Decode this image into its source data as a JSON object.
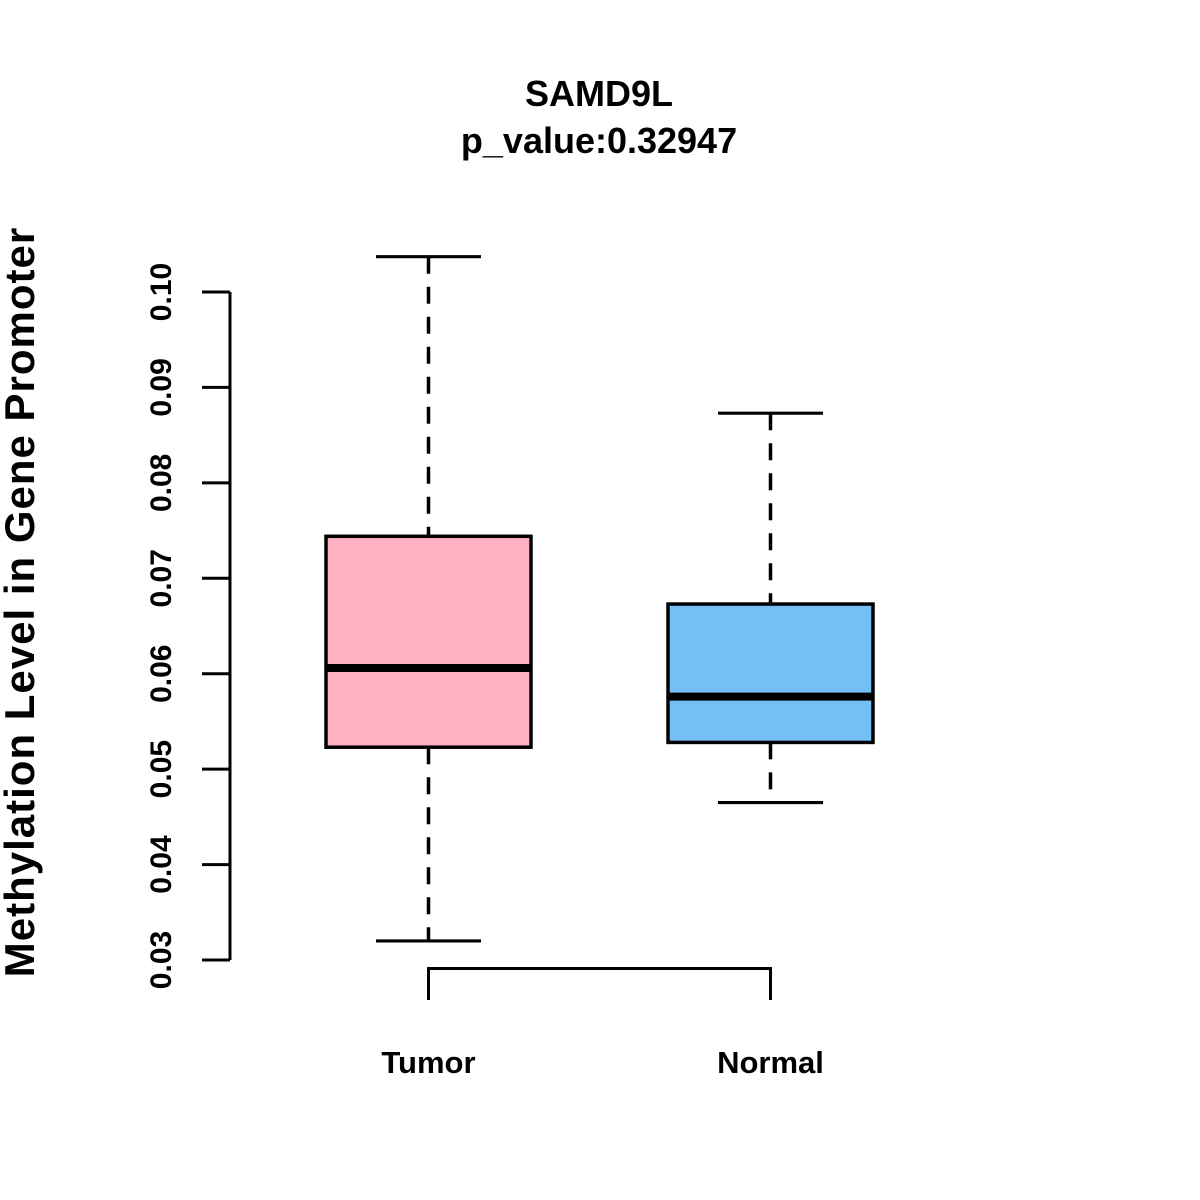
{
  "chart_data": {
    "type": "boxplot",
    "title": "SAMD9L",
    "subtitle": "p_value:0.32947",
    "ylabel": "Methylation Level in Gene Promoter",
    "xlabel": "",
    "ylim": [
      0.03,
      0.1
    ],
    "yticks": [
      "0.03",
      "0.04",
      "0.05",
      "0.06",
      "0.07",
      "0.08",
      "0.09",
      "0.10"
    ],
    "ytick_values": [
      0.03,
      0.04,
      0.05,
      0.06,
      0.07,
      0.08,
      0.09,
      0.1
    ],
    "grid": "off",
    "legend": "none",
    "whisker_style": "dashed",
    "groups": [
      {
        "label": "Tumor",
        "fill_color": "#FFB1C4",
        "whisker_low": 0.032,
        "q1": 0.0523,
        "median": 0.0606,
        "q3": 0.0744,
        "whisker_high": 0.1037
      },
      {
        "label": "Normal",
        "fill_color": "#73BFF6",
        "whisker_low": 0.0465,
        "q1": 0.0528,
        "median": 0.0576,
        "q3": 0.0673,
        "whisker_high": 0.0873
      }
    ],
    "colors": {
      "box_border": "#000000",
      "median_line": "#000000",
      "axis": "#000000",
      "background": "#ffffff"
    }
  }
}
